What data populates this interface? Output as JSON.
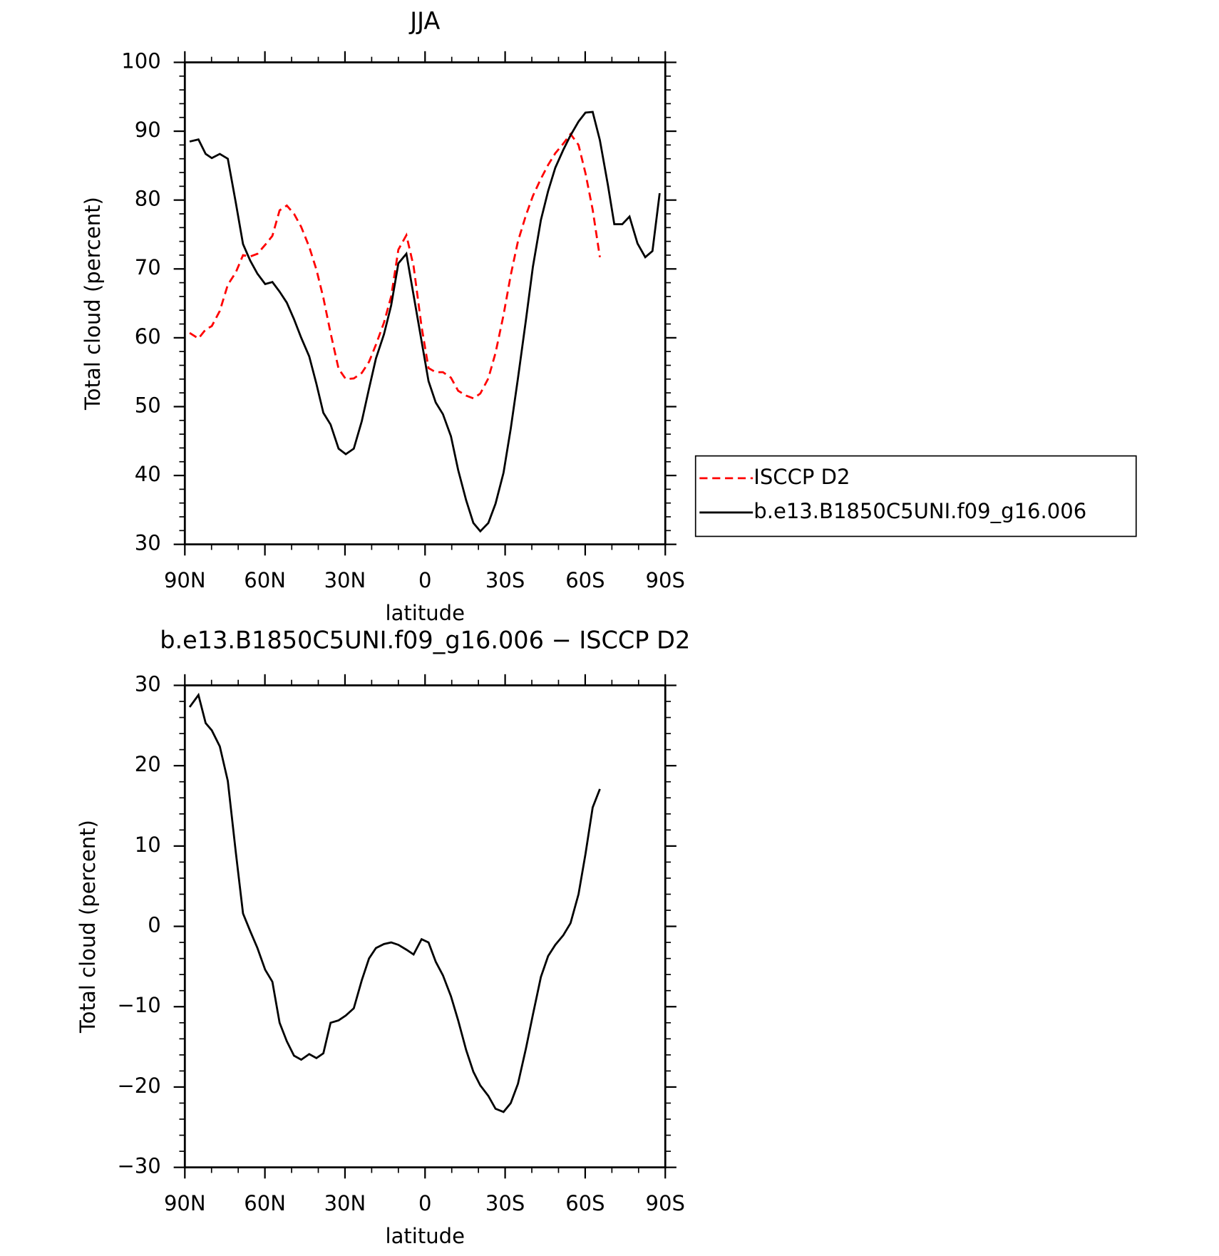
{
  "chart_data": [
    {
      "type": "line",
      "title": "JJA",
      "xlabel": "latitude",
      "ylabel": "Total cloud (percent)",
      "x": [
        88.2,
        84.9,
        82.2,
        79.9,
        76.9,
        73.9,
        70.9,
        68.2,
        65.5,
        62.8,
        59.9,
        57.2,
        54.5,
        51.8,
        49.1,
        46.4,
        43.4,
        40.7,
        38.1,
        35.4,
        32.4,
        29.7,
        26.7,
        23.7,
        21.0,
        18.4,
        15.4,
        12.7,
        10.0,
        7.0,
        4.3,
        1.3,
        -1.3,
        -4.0,
        -6.7,
        -9.7,
        -12.4,
        -15.4,
        -18.1,
        -20.7,
        -23.7,
        -26.4,
        -29.4,
        -32.1,
        -34.8,
        -37.8,
        -40.4,
        -43.4,
        -46.1,
        -48.8,
        -51.8,
        -54.5,
        -57.5,
        -60.1,
        -62.8,
        -65.5,
        -68.5,
        -70.9,
        -73.9,
        -76.6,
        -79.6,
        -82.5,
        -85.2,
        -87.9
      ],
      "series": [
        {
          "name": "ISCCP D2",
          "color": "#ff0000",
          "line_style": "dashed",
          "values": [
            60.7,
            59.9,
            61.2,
            61.7,
            63.9,
            67.7,
            69.5,
            72.0,
            71.8,
            72.2,
            73.5,
            74.8,
            78.5,
            79.2,
            78.0,
            76.1,
            73.2,
            69.9,
            65.8,
            60.7,
            55.5,
            54.0,
            54.1,
            54.9,
            56.5,
            59.0,
            62.2,
            66.0,
            72.8,
            74.9,
            70.4,
            61.6,
            55.6,
            55.0,
            55.0,
            54.2,
            52.3,
            51.6,
            51.2,
            51.9,
            54.1,
            57.8,
            63.3,
            69.1,
            74.0,
            77.8,
            80.6,
            83.1,
            85.1,
            86.8,
            88.2,
            89.6,
            88.0,
            83.9,
            78.6,
            71.7,
            null,
            null,
            null,
            null,
            null,
            null,
            null,
            null
          ]
        },
        {
          "name": "b.e13.B1850C5UNI.f09_g16.006",
          "color": "#000000",
          "line_style": "solid",
          "values": [
            88.5,
            88.8,
            86.7,
            86.1,
            86.7,
            86.0,
            79.6,
            73.6,
            71.2,
            69.3,
            67.8,
            68.1,
            66.7,
            65.1,
            62.7,
            60.0,
            57.3,
            53.3,
            49.1,
            47.4,
            43.9,
            43.1,
            43.9,
            47.9,
            52.6,
            57.0,
            60.5,
            64.7,
            70.8,
            72.2,
            66.2,
            59.5,
            53.7,
            50.6,
            48.9,
            45.7,
            40.8,
            36.4,
            33.1,
            31.9,
            33.1,
            35.9,
            40.4,
            46.8,
            54.1,
            62.6,
            70.3,
            77.1,
            81.3,
            84.7,
            87.3,
            89.4,
            91.4,
            92.7,
            92.8,
            88.7,
            82.2,
            76.5,
            76.5,
            77.6,
            73.7,
            71.7,
            72.6,
            81.0
          ]
        }
      ],
      "xlim": [
        90,
        -90
      ],
      "xticks": [
        {
          "value": 90,
          "label": "90N"
        },
        {
          "value": 60,
          "label": "60N"
        },
        {
          "value": 30,
          "label": "30N"
        },
        0,
        {
          "value": -30,
          "label": "30S"
        },
        {
          "value": -60,
          "label": "60S"
        },
        {
          "value": -90,
          "label": "90S"
        }
      ],
      "ylim": [
        30,
        100
      ],
      "yticks": [
        30,
        40,
        50,
        60,
        70,
        80,
        90,
        100
      ],
      "legend": "right"
    },
    {
      "type": "line",
      "title": "b.e13.B1850C5UNI.f09_g16.006 − ISCCP D2",
      "xlabel": "latitude",
      "ylabel": "Total cloud (percent)",
      "x": [
        88.2,
        84.9,
        82.2,
        79.9,
        76.9,
        73.9,
        70.9,
        68.2,
        65.5,
        62.8,
        59.9,
        57.2,
        54.5,
        51.8,
        49.1,
        46.4,
        43.4,
        40.7,
        38.1,
        35.4,
        32.4,
        29.7,
        26.7,
        23.7,
        21.0,
        18.4,
        15.4,
        12.7,
        10.0,
        7.0,
        4.3,
        1.3,
        -1.3,
        -4.0,
        -6.7,
        -9.7,
        -12.4,
        -15.4,
        -18.1,
        -20.7,
        -23.7,
        -26.4,
        -29.4,
        -32.1,
        -34.8,
        -37.8,
        -40.4,
        -43.4,
        -46.1,
        -48.8,
        -51.8,
        -54.5,
        -57.5,
        -60.1,
        -62.8,
        -65.5,
        -68.5,
        -70.9,
        -73.9,
        -76.6,
        -79.6,
        -82.5,
        -85.2,
        -87.9
      ],
      "series": [
        {
          "color": "#000000",
          "line_style": "solid",
          "values": [
            27.3,
            28.8,
            25.3,
            24.4,
            22.4,
            18.1,
            9.2,
            1.6,
            -0.6,
            -2.7,
            -5.4,
            -6.9,
            -12.0,
            -14.3,
            -16.1,
            -16.6,
            -15.9,
            -16.4,
            -15.8,
            -12.0,
            -11.7,
            -11.1,
            -10.2,
            -6.7,
            -4.0,
            -2.7,
            -2.2,
            -2.0,
            -2.3,
            -2.9,
            -3.5,
            -1.6,
            -2.0,
            -4.4,
            -6.1,
            -8.7,
            -11.7,
            -15.4,
            -18.1,
            -19.8,
            -21.1,
            -22.7,
            -23.1,
            -22.0,
            -19.6,
            -15.2,
            -11.0,
            -6.3,
            -3.7,
            -2.3,
            -1.1,
            0.4,
            4.0,
            9.0,
            14.8,
            17.1,
            null,
            null,
            null,
            null,
            null,
            null,
            null,
            null
          ]
        }
      ],
      "xlim": [
        90,
        -90
      ],
      "xticks": [
        {
          "value": 90,
          "label": "90N"
        },
        {
          "value": 60,
          "label": "60N"
        },
        {
          "value": 30,
          "label": "30N"
        },
        0,
        {
          "value": -30,
          "label": "30S"
        },
        {
          "value": -60,
          "label": "60S"
        },
        {
          "value": -90,
          "label": "90S"
        }
      ],
      "ylim": [
        -30,
        30
      ],
      "yticks": [
        {
          "value": -30,
          "label": "−30"
        },
        {
          "value": -20,
          "label": "−20"
        },
        {
          "value": -10,
          "label": "−10"
        },
        0,
        10,
        20,
        30
      ]
    }
  ]
}
